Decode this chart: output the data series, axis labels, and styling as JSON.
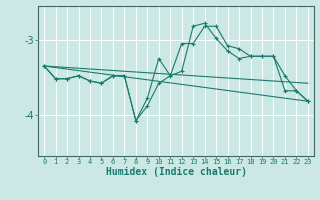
{
  "xlabel": "Humidex (Indice chaleur)",
  "bg_color": "#cce8e4",
  "grid_color": "#ffffff",
  "line_color": "#1a7a6e",
  "xlim": [
    -0.5,
    23.5
  ],
  "ylim": [
    -4.55,
    -2.55
  ],
  "yticks": [
    -4,
    -3
  ],
  "xticks": [
    0,
    1,
    2,
    3,
    4,
    5,
    6,
    7,
    8,
    9,
    10,
    11,
    12,
    13,
    14,
    15,
    16,
    17,
    18,
    19,
    20,
    21,
    22,
    23
  ],
  "line1_x": [
    0,
    1,
    2,
    3,
    4,
    5,
    6,
    7,
    8,
    9,
    10,
    11,
    12,
    13,
    14,
    15,
    16,
    17,
    18,
    19,
    20,
    21,
    22,
    23
  ],
  "line1_y": [
    -3.35,
    -3.52,
    -3.52,
    -3.48,
    -3.55,
    -3.58,
    -3.48,
    -3.48,
    -4.08,
    -3.78,
    -3.25,
    -3.48,
    -3.05,
    -3.05,
    -2.82,
    -2.82,
    -3.08,
    -3.12,
    -3.22,
    -3.22,
    -3.22,
    -3.68,
    -3.68,
    -3.82
  ],
  "line2_x": [
    0,
    1,
    2,
    3,
    4,
    5,
    6,
    7,
    8,
    9,
    10,
    11,
    12,
    13,
    14,
    15,
    16,
    17,
    18,
    19,
    20,
    21,
    22,
    23
  ],
  "line2_y": [
    -3.35,
    -3.52,
    -3.52,
    -3.48,
    -3.55,
    -3.58,
    -3.48,
    -3.48,
    -4.08,
    -3.88,
    -3.58,
    -3.48,
    -3.42,
    -2.82,
    -2.78,
    -2.98,
    -3.15,
    -3.25,
    -3.22,
    -3.22,
    -3.22,
    -3.48,
    -3.68,
    -3.82
  ],
  "line3_x": [
    0,
    23
  ],
  "line3_y": [
    -3.35,
    -3.58
  ],
  "line4_x": [
    0,
    23
  ],
  "line4_y": [
    -3.35,
    -3.82
  ],
  "marker": "+"
}
